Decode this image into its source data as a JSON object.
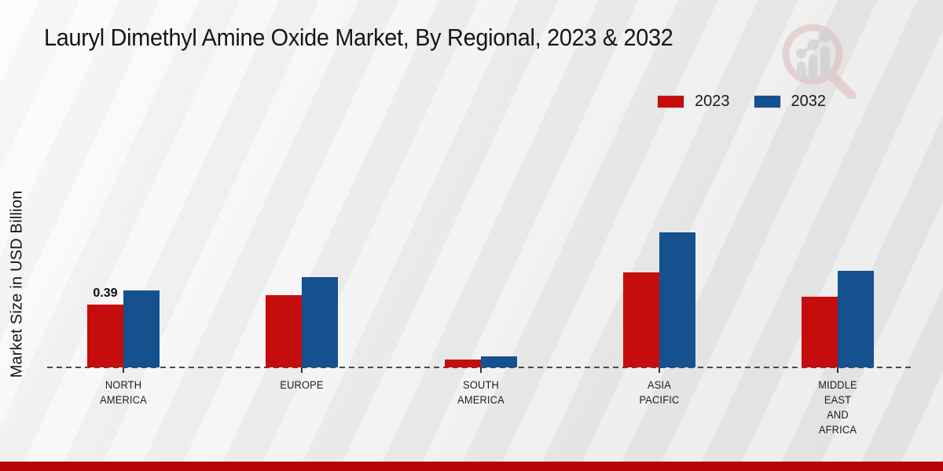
{
  "page": {
    "footer_color": "#b50506"
  },
  "logo": {
    "name": "magnifier-growth-watermark",
    "ring_color": "#debaba",
    "bars_color": "#c6c6ca"
  },
  "chart_data": {
    "type": "bar",
    "title": "Lauryl Dimethyl Amine Oxide Market, By Regional, 2023 & 2032",
    "ylabel": "Market Size in USD Billion",
    "categories": [
      "NORTH AMERICA",
      "EUROPE",
      "SOUTH AMERICA",
      "ASIA PACIFIC",
      "MIDDLE EAST AND AFRICA"
    ],
    "category_label_lines": [
      [
        "NORTH",
        "AMERICA"
      ],
      [
        "EUROPE"
      ],
      [
        "SOUTH",
        "AMERICA"
      ],
      [
        "ASIA",
        "PACIFIC"
      ],
      [
        "MIDDLE",
        "EAST",
        "AND",
        "AFRICA"
      ]
    ],
    "series": [
      {
        "name": "2023",
        "color": "#c60d0e",
        "values": [
          0.39,
          0.45,
          0.05,
          0.59,
          0.44
        ]
      },
      {
        "name": "2032",
        "color": "#15508f",
        "values": [
          0.48,
          0.56,
          0.07,
          0.84,
          0.6
        ]
      }
    ],
    "annotations": [
      {
        "series_index": 0,
        "category_index": 0,
        "text": "0.39"
      }
    ],
    "ylim": [
      0,
      1.0
    ],
    "grid": false,
    "baseline_style": "dashed",
    "legend_position": "top-right"
  }
}
